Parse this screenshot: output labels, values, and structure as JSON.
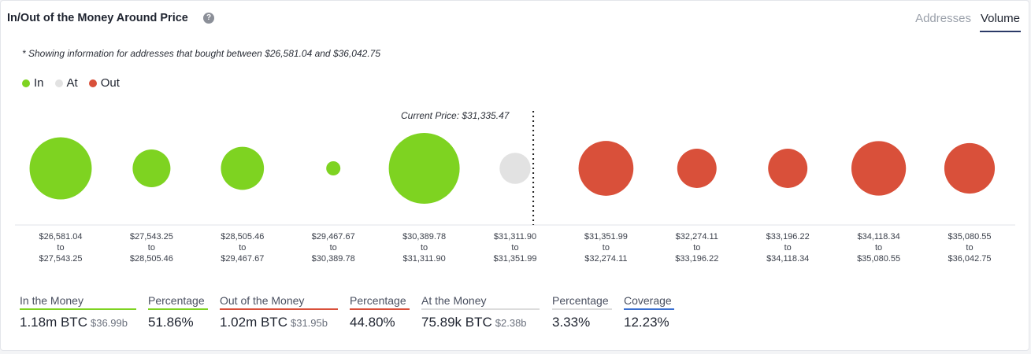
{
  "header": {
    "title": "In/Out of the Money Around Price",
    "help_icon": "question-circle-icon",
    "tabs": [
      {
        "label": "Addresses",
        "active": false
      },
      {
        "label": "Volume",
        "active": true
      }
    ]
  },
  "note": "* Showing information for addresses that bought between $26,581.04 and $36,042.75",
  "colors": {
    "in": "#7ed321",
    "at": "#e2e2e2",
    "out": "#d9503a",
    "coverage": "#3a6fd0"
  },
  "legend": [
    {
      "label": "In",
      "color": "#7ed321"
    },
    {
      "label": "At",
      "color": "#e2e2e2"
    },
    {
      "label": "Out",
      "color": "#d9503a"
    }
  ],
  "chart_data": {
    "type": "scatter",
    "title": "In/Out of the Money Around Price",
    "current_price_label": "Current Price: $31,335.47",
    "current_price": 31335.47,
    "buckets": [
      {
        "from": "$26,581.04",
        "to": "$27,543.25",
        "status": "in",
        "relative_size": 1.0
      },
      {
        "from": "$27,543.25",
        "to": "$28,505.46",
        "status": "in",
        "relative_size": 0.37
      },
      {
        "from": "$28,505.46",
        "to": "$29,467.67",
        "status": "in",
        "relative_size": 0.48
      },
      {
        "from": "$29,467.67",
        "to": "$30,389.78",
        "status": "in",
        "relative_size": 0.05
      },
      {
        "from": "$30,389.78",
        "to": "$31,311.90",
        "status": "in",
        "relative_size": 1.3
      },
      {
        "from": "$31,311.90",
        "to": "$31,351.99",
        "status": "at",
        "relative_size": 0.25
      },
      {
        "from": "$31,351.99",
        "to": "$32,274.11",
        "status": "out",
        "relative_size": 0.78
      },
      {
        "from": "$32,274.11",
        "to": "$33,196.22",
        "status": "out",
        "relative_size": 0.4
      },
      {
        "from": "$33,196.22",
        "to": "$34,118.34",
        "status": "out",
        "relative_size": 0.4
      },
      {
        "from": "$34,118.34",
        "to": "$35,080.55",
        "status": "out",
        "relative_size": 0.77
      },
      {
        "from": "$35,080.55",
        "to": "$36,042.75",
        "status": "out",
        "relative_size": 0.66
      }
    ],
    "range_separator": "to"
  },
  "stats": [
    {
      "label": "In the Money",
      "value": "1.18m BTC",
      "sub": "$36.99b",
      "color": "#7ed321"
    },
    {
      "label": "Percentage",
      "value": "51.86%",
      "sub": "",
      "color": "#7ed321"
    },
    {
      "label": "Out of the Money",
      "value": "1.02m BTC",
      "sub": "$31.95b",
      "color": "#d9503a"
    },
    {
      "label": "Percentage",
      "value": "44.80%",
      "sub": "",
      "color": "#d9503a"
    },
    {
      "label": "At the Money",
      "value": "75.89k BTC",
      "sub": "$2.38b",
      "color": "#dcdcdc"
    },
    {
      "label": "Percentage",
      "value": "3.33%",
      "sub": "",
      "color": "#dcdcdc"
    },
    {
      "label": "Coverage",
      "value": "12.23%",
      "sub": "",
      "color": "#3a6fd0"
    }
  ]
}
